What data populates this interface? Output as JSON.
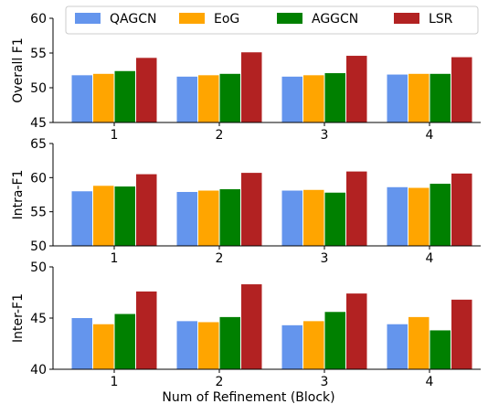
{
  "chart_data": {
    "type": "bar",
    "xlabel": "Num of Refinement (Block)",
    "categories": [
      "1",
      "2",
      "3",
      "4"
    ],
    "legend": {
      "placement": "top",
      "entries": [
        {
          "name": "QAGCN",
          "color": "#6495ED"
        },
        {
          "name": "EoG",
          "color": "#FFA500"
        },
        {
          "name": "AGGCN",
          "color": "#008000"
        },
        {
          "name": "LSR",
          "color": "#B22222"
        }
      ]
    },
    "panels": [
      {
        "ylabel": "Overall F1",
        "ylim": [
          45,
          60
        ],
        "yticks": [
          "45",
          "50",
          "55",
          "60"
        ],
        "series": [
          {
            "name": "QAGCN",
            "values": [
              51.8,
              51.6,
              51.6,
              51.9
            ]
          },
          {
            "name": "EoG",
            "values": [
              52.0,
              51.8,
              51.8,
              52.0
            ]
          },
          {
            "name": "AGGCN",
            "values": [
              52.4,
              52.0,
              52.1,
              52.0
            ]
          },
          {
            "name": "LSR",
            "values": [
              54.3,
              55.1,
              54.6,
              54.4
            ]
          }
        ]
      },
      {
        "ylabel": "Intra-F1",
        "ylim": [
          50,
          65
        ],
        "yticks": [
          "50",
          "55",
          "60",
          "65"
        ],
        "series": [
          {
            "name": "QAGCN",
            "values": [
              58.0,
              57.9,
              58.1,
              58.6
            ]
          },
          {
            "name": "EoG",
            "values": [
              58.8,
              58.1,
              58.2,
              58.5
            ]
          },
          {
            "name": "AGGCN",
            "values": [
              58.7,
              58.3,
              57.8,
              59.1
            ]
          },
          {
            "name": "LSR",
            "values": [
              60.5,
              60.7,
              60.9,
              60.6
            ]
          }
        ]
      },
      {
        "ylabel": "Inter-F1",
        "ylim": [
          40,
          50
        ],
        "yticks": [
          "40",
          "45",
          "50"
        ],
        "series": [
          {
            "name": "QAGCN",
            "values": [
              45.0,
              44.7,
              44.3,
              44.4
            ]
          },
          {
            "name": "EoG",
            "values": [
              44.4,
              44.6,
              44.7,
              45.1
            ]
          },
          {
            "name": "AGGCN",
            "values": [
              45.4,
              45.1,
              45.6,
              43.8
            ]
          },
          {
            "name": "LSR",
            "values": [
              47.6,
              48.3,
              47.4,
              46.8
            ]
          }
        ]
      }
    ]
  }
}
